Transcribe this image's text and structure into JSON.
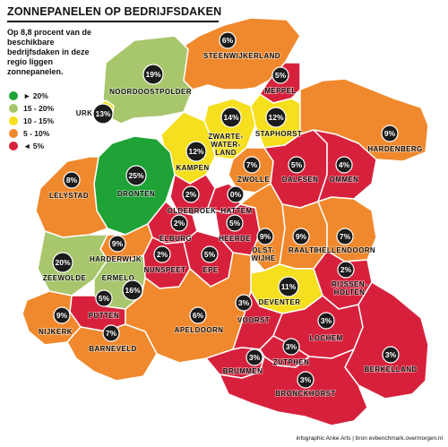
{
  "title": "ZONNEPANELEN OP BEDRIJFSDAKEN",
  "subtitle": "Op 8,8 procent van de beschikbare bedrijfsdaken in deze regio liggen zonnepanelen.",
  "legend": [
    {
      "label": "► 20%",
      "color": "#1fa336"
    },
    {
      "label": "15 - 20%",
      "color": "#a8c66c"
    },
    {
      "label": "10 - 15%",
      "color": "#f5df1e"
    },
    {
      "label": "5 - 10%",
      "color": "#f0892d"
    },
    {
      "label": "◄ 5%",
      "color": "#d7213c"
    }
  ],
  "credit": "infographic Anke Arts | bron evbenchmark.overmorgen.nl",
  "municipalities": [
    {
      "name": "STEENWIJKERLAND",
      "value": "6%",
      "color": "#f0892d"
    },
    {
      "name": "MEPPEL",
      "value": "5%",
      "color": "#d7213c"
    },
    {
      "name": "NOORDOOSTPOLDER",
      "value": "19%",
      "color": "#a8c66c"
    },
    {
      "name": "URK",
      "value": "13%",
      "color": "#f5df1e"
    },
    {
      "name": "ZWARTE-WATER-LAND",
      "value": "14%",
      "color": "#f5df1e"
    },
    {
      "name": "STAPHORST",
      "value": "12%",
      "color": "#f5df1e"
    },
    {
      "name": "HARDENBERG",
      "value": "9%",
      "color": "#f0892d"
    },
    {
      "name": "KAMPEN",
      "value": "12%",
      "color": "#f5df1e"
    },
    {
      "name": "ZWOLLE",
      "value": "7%",
      "color": "#f0892d"
    },
    {
      "name": "DALFSEN",
      "value": "5%",
      "color": "#d7213c"
    },
    {
      "name": "OMMEN",
      "value": "4%",
      "color": "#d7213c"
    },
    {
      "name": "DRONTEN",
      "value": "25%",
      "color": "#1fa336"
    },
    {
      "name": "LELYSTAD",
      "value": "8%",
      "color": "#f0892d"
    },
    {
      "name": "OLDEBROEK",
      "value": "2%",
      "color": "#d7213c"
    },
    {
      "name": "HATTEM",
      "value": "0%",
      "color": "#d7213c"
    },
    {
      "name": "ELBURG",
      "value": "2%",
      "color": "#d7213c"
    },
    {
      "name": "HEERDE",
      "value": "5%",
      "color": "#d7213c"
    },
    {
      "name": "OLST-WIJHE",
      "value": "9%",
      "color": "#f0892d"
    },
    {
      "name": "RAALTE",
      "value": "9%",
      "color": "#f0892d"
    },
    {
      "name": "HELLENDOORN",
      "value": "7%",
      "color": "#f0892d"
    },
    {
      "name": "HARDERWIJK",
      "value": "9%",
      "color": "#f0892d"
    },
    {
      "name": "NUNSPEET",
      "value": "2%",
      "color": "#d7213c"
    },
    {
      "name": "EPE",
      "value": "5%",
      "color": "#d7213c"
    },
    {
      "name": "ZEEWOLDE",
      "value": "20%",
      "color": "#a8c66c"
    },
    {
      "name": "ERMELO",
      "value": "16%",
      "color": "#a8c66c"
    },
    {
      "name": "RIJSSEN-HOLTEN",
      "value": "2%",
      "color": "#d7213c"
    },
    {
      "name": "DEVENTER",
      "value": "11%",
      "color": "#f5df1e"
    },
    {
      "name": "PUTTEN",
      "value": "5%",
      "color": "#d7213c"
    },
    {
      "name": "NIJKERK",
      "value": "9%",
      "color": "#f0892d"
    },
    {
      "name": "BARNEVELD",
      "value": "7%",
      "color": "#f0892d"
    },
    {
      "name": "APELDOORN",
      "value": "6%",
      "color": "#f0892d"
    },
    {
      "name": "VOORST",
      "value": "3%",
      "color": "#d7213c"
    },
    {
      "name": "LOCHEM",
      "value": "3%",
      "color": "#d7213c"
    },
    {
      "name": "ZUTPHEN",
      "value": "3%",
      "color": "#d7213c"
    },
    {
      "name": "BRUMMEN",
      "value": "3%",
      "color": "#d7213c"
    },
    {
      "name": "BERKELLAND",
      "value": "3%",
      "color": "#d7213c"
    },
    {
      "name": "BRONCKHORST",
      "value": "3%",
      "color": "#d7213c"
    }
  ]
}
